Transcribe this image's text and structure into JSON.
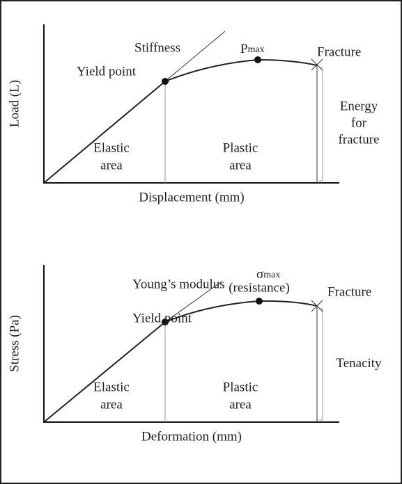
{
  "diagrams": [
    {
      "y_label": "Load (L)",
      "x_label": "Displacement (mm)",
      "slope_label": "Stiffness",
      "max_label": {
        "symbol": "P",
        "sub": "max"
      },
      "max_note": null,
      "yield_label": "Yield point",
      "fracture_label": "Fracture",
      "energy_label": [
        "Energy",
        "for",
        "fracture"
      ],
      "elastic_label": [
        "Elastic",
        "area"
      ],
      "plastic_label": [
        "Plastic",
        "area"
      ]
    },
    {
      "y_label": "Stress (Pa)",
      "x_label": "Deformation (mm)",
      "slope_label": "Young’s modulus",
      "max_label": {
        "symbol": "σ",
        "sub": "max"
      },
      "max_note": "(resistance)",
      "yield_label": "Yield point",
      "fracture_label": "Fracture",
      "energy_label": [
        "Tenacity"
      ],
      "elastic_label": [
        "Elastic",
        "area"
      ],
      "plastic_label": [
        "Plastic",
        "area"
      ]
    }
  ]
}
